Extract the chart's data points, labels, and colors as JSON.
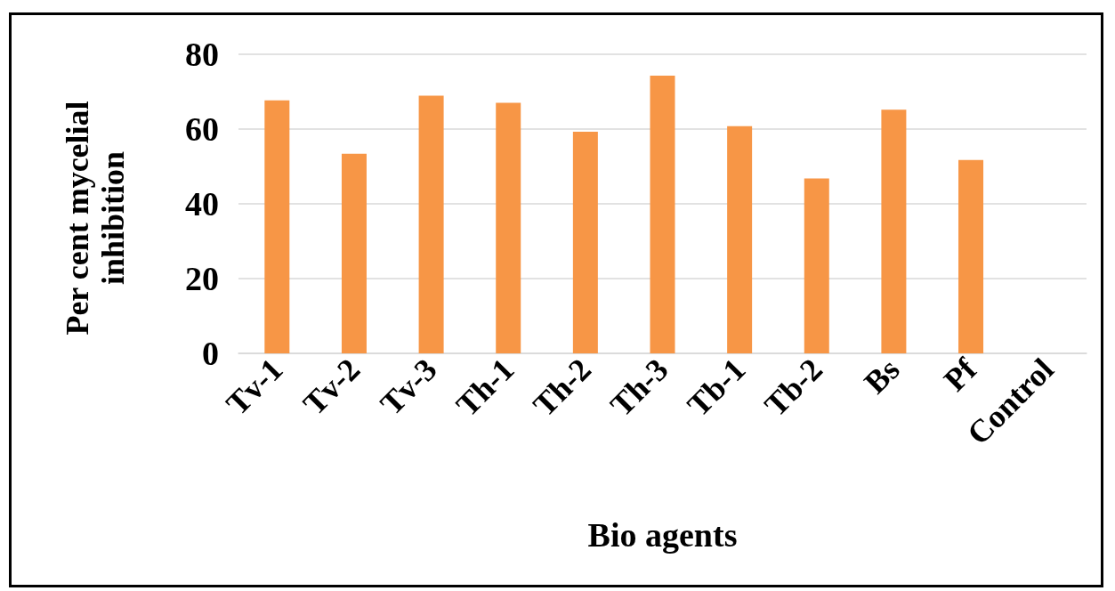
{
  "chart_data": {
    "type": "bar",
    "xlabel": "Bio agents",
    "ylabel": "Per cent mycelial inhibition",
    "categories": [
      "Tv-1",
      "Tv-2",
      "Tv-3",
      "Th-1",
      "Th-2",
      "Th-3",
      "Tb-1",
      "Tb-2",
      "Bs",
      "Pf",
      "Control"
    ],
    "values": [
      67.7,
      53.4,
      68.9,
      67.0,
      59.3,
      74.3,
      60.8,
      46.8,
      65.2,
      51.7,
      0
    ],
    "color": "#f79646",
    "ylim": [
      0,
      80
    ],
    "yticks": [
      0,
      20,
      40,
      60,
      80
    ],
    "grid": "y"
  }
}
